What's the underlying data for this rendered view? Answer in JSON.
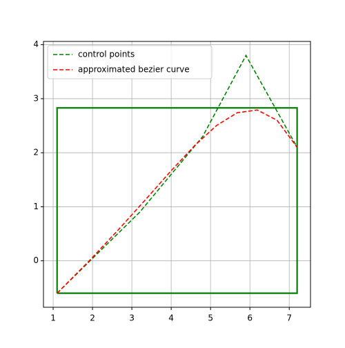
{
  "chart_data": {
    "type": "line",
    "xlim": [
      0.754,
      7.54
    ],
    "ylim": [
      -0.86,
      4.06
    ],
    "xticks": [
      1,
      2,
      3,
      4,
      5,
      6,
      7
    ],
    "yticks": [
      0,
      1,
      2,
      3,
      4
    ],
    "grid": true,
    "legend": "upper left",
    "series": [
      {
        "name": "control points",
        "color": "#008000",
        "dash": true,
        "x": [
          1.1,
          3.2,
          4.8,
          5.9,
          7.2
        ],
        "values": [
          -0.6,
          0.9,
          2.3,
          3.8,
          2.1
        ]
      },
      {
        "name": "approximated bezier curve",
        "color": "#ff0000",
        "dash": true,
        "x": [
          1.1,
          1.91,
          2.661,
          3.356,
          3.998,
          4.594,
          5.151,
          5.678,
          6.187,
          6.689,
          7.2
        ],
        "values": [
          -0.6,
          -0.006,
          0.577,
          1.139,
          1.666,
          2.131,
          2.503,
          2.74,
          2.791,
          2.601,
          2.1
        ]
      }
    ],
    "rectangle": {
      "color": "#008000",
      "x": [
        1.1,
        7.2,
        7.2,
        1.1,
        1.1
      ],
      "values": [
        -0.6,
        -0.6,
        2.83,
        2.83,
        -0.6
      ]
    }
  }
}
